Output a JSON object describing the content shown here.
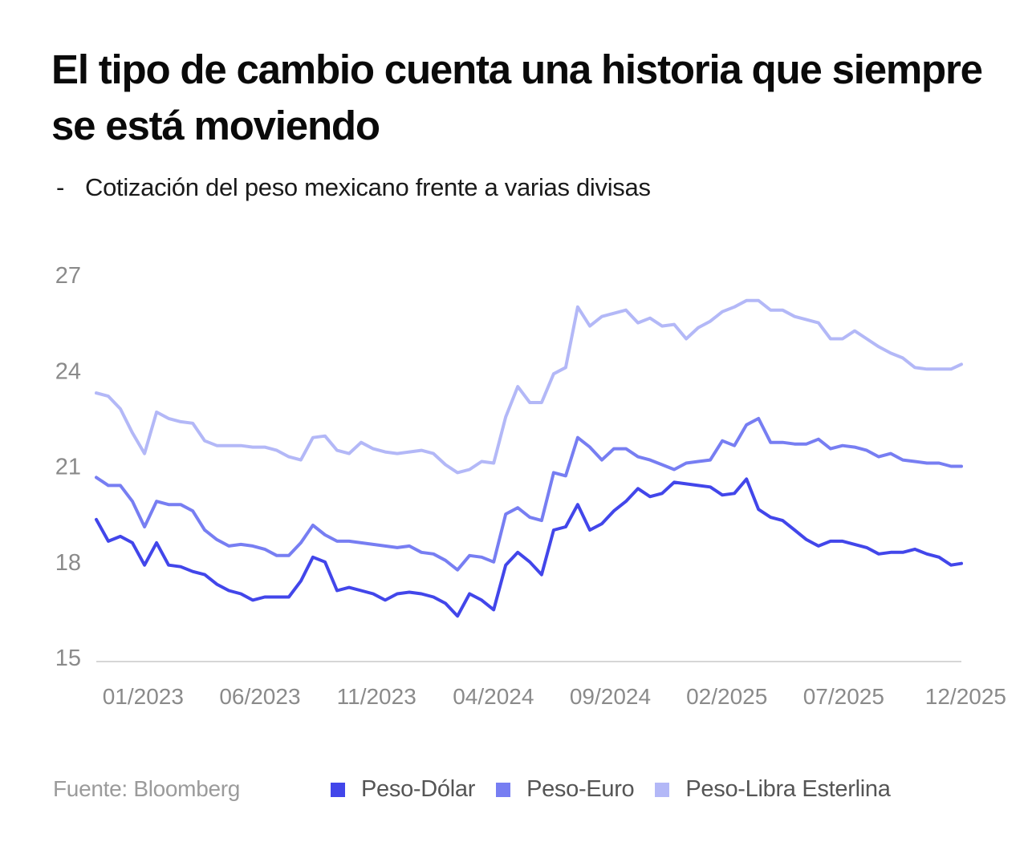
{
  "header": {
    "title": "El tipo de cambio cuenta una historia que siempre se está moviendo",
    "subtitle_dash": "-",
    "subtitle": "Cotización del peso mexicano frente a varias divisas"
  },
  "footer": {
    "source": "Fuente: Bloomberg"
  },
  "chart_data": {
    "type": "line",
    "title": "El tipo de cambio cuenta una historia que siempre se está moviendo",
    "subtitle": "Cotización del peso mexicano frente a varias divisas",
    "xlabel": "",
    "ylabel": "",
    "x_units": "decimal year",
    "ylim": [
      15,
      27
    ],
    "xlim": [
      2022.833,
      2025.92
    ],
    "yticks": [
      27,
      24,
      21,
      18,
      15
    ],
    "ytick_labels": [
      "27",
      "24",
      "21",
      "18",
      "15"
    ],
    "xticks": [
      2023.0,
      2023.417,
      2023.833,
      2024.25,
      2024.667,
      2025.083,
      2025.5,
      2025.917
    ],
    "xtick_labels": [
      "01/2023",
      "06/2023",
      "11/2023",
      "04/2024",
      "09/2024",
      "02/2025",
      "07/2025",
      "12/2025"
    ],
    "grid": false,
    "legend_position": "bottom",
    "x": [
      2022.833,
      2022.876,
      2022.919,
      2022.962,
      2023.005,
      2023.048,
      2023.091,
      2023.134,
      2023.177,
      2023.22,
      2023.263,
      2023.306,
      2023.349,
      2023.391,
      2023.434,
      2023.477,
      2023.52,
      2023.563,
      2023.606,
      2023.649,
      2023.692,
      2023.735,
      2023.778,
      2023.821,
      2023.864,
      2023.907,
      2023.95,
      2023.993,
      2024.036,
      2024.079,
      2024.122,
      2024.165,
      2024.208,
      2024.251,
      2024.294,
      2024.337,
      2024.38,
      2024.422,
      2024.465,
      2024.508,
      2024.551,
      2024.594,
      2024.637,
      2024.68,
      2024.723,
      2024.766,
      2024.809,
      2024.852,
      2024.895,
      2024.938,
      2024.981,
      2025.024,
      2025.067,
      2025.11,
      2025.153,
      2025.196,
      2025.239,
      2025.282,
      2025.325,
      2025.367,
      2025.41,
      2025.453,
      2025.496,
      2025.539,
      2025.582,
      2025.625,
      2025.668,
      2025.711,
      2025.754,
      2025.797,
      2025.84,
      2025.883,
      2025.92
    ],
    "series": [
      {
        "name": "Peso-Dólar",
        "color": "#4246ea",
        "values": [
          19.33,
          18.65,
          18.8,
          18.6,
          17.9,
          18.6,
          17.9,
          17.85,
          17.7,
          17.6,
          17.3,
          17.1,
          17.0,
          16.8,
          16.9,
          16.9,
          16.9,
          17.4,
          18.15,
          18.0,
          17.1,
          17.2,
          17.1,
          17.0,
          16.8,
          17.0,
          17.05,
          17.0,
          16.9,
          16.7,
          16.3,
          17.0,
          16.8,
          16.5,
          17.9,
          18.3,
          18.0,
          17.6,
          19.0,
          19.1,
          19.8,
          19.0,
          19.2,
          19.6,
          19.9,
          20.3,
          20.05,
          20.15,
          20.5,
          20.45,
          20.4,
          20.35,
          20.1,
          20.15,
          20.6,
          19.65,
          19.4,
          19.3,
          19.0,
          18.7,
          18.5,
          18.65,
          18.65,
          18.55,
          18.45,
          18.25,
          18.3,
          18.3,
          18.4,
          18.25,
          18.15,
          17.9,
          17.95
        ]
      },
      {
        "name": "Peso-Euro",
        "color": "#777ef2",
        "values": [
          20.65,
          20.4,
          20.4,
          19.9,
          19.1,
          19.9,
          19.8,
          19.8,
          19.6,
          19.0,
          18.7,
          18.5,
          18.55,
          18.5,
          18.4,
          18.2,
          18.2,
          18.6,
          19.15,
          18.85,
          18.65,
          18.65,
          18.6,
          18.55,
          18.5,
          18.45,
          18.5,
          18.3,
          18.25,
          18.05,
          17.75,
          18.2,
          18.15,
          18.0,
          19.5,
          19.7,
          19.4,
          19.3,
          20.8,
          20.7,
          21.9,
          21.6,
          21.2,
          21.55,
          21.55,
          21.3,
          21.2,
          21.05,
          20.9,
          21.1,
          21.15,
          21.2,
          21.8,
          21.65,
          22.3,
          22.5,
          21.75,
          21.75,
          21.7,
          21.7,
          21.85,
          21.55,
          21.65,
          21.6,
          21.5,
          21.3,
          21.4,
          21.2,
          21.15,
          21.1,
          21.1,
          21.0,
          21.0
        ]
      },
      {
        "name": "Peso-Libra Esterlina",
        "color": "#b3b8f7",
        "values": [
          23.3,
          23.2,
          22.8,
          22.05,
          21.4,
          22.7,
          22.5,
          22.4,
          22.35,
          21.8,
          21.65,
          21.65,
          21.65,
          21.6,
          21.6,
          21.5,
          21.3,
          21.2,
          21.9,
          21.95,
          21.5,
          21.4,
          21.75,
          21.55,
          21.45,
          21.4,
          21.45,
          21.5,
          21.4,
          21.05,
          20.8,
          20.9,
          21.15,
          21.1,
          22.55,
          23.5,
          23.0,
          23.0,
          23.9,
          24.1,
          26.0,
          25.4,
          25.7,
          25.8,
          25.9,
          25.5,
          25.65,
          25.4,
          25.45,
          25.0,
          25.35,
          25.55,
          25.85,
          26.0,
          26.2,
          26.2,
          25.9,
          25.9,
          25.7,
          25.6,
          25.5,
          25.0,
          25.0,
          25.25,
          25.0,
          24.75,
          24.55,
          24.4,
          24.1,
          24.05,
          24.05,
          24.05,
          24.2
        ]
      }
    ]
  }
}
